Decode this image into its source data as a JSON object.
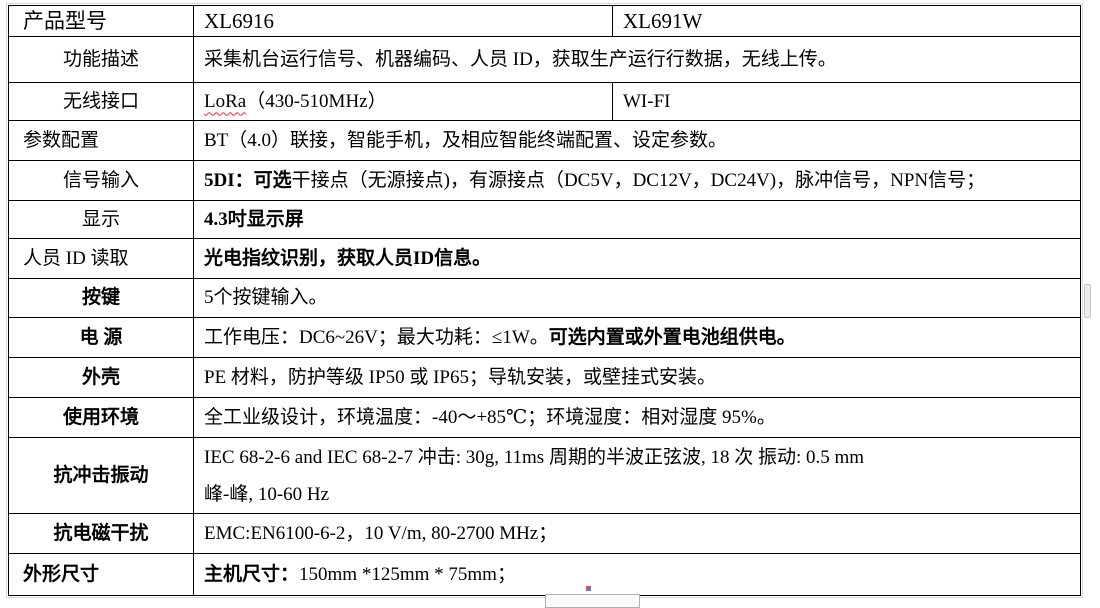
{
  "table": {
    "border_color": "#000000",
    "spellcheck_underline_color": "#ff2a2a",
    "rows": [
      {
        "label": "产品型号",
        "label_align": "left",
        "label_bold": false,
        "label_large": true,
        "cells": [
          {
            "large": true,
            "segments": [
              {
                "text": "XL6916"
              }
            ]
          },
          {
            "large": true,
            "segments": [
              {
                "text": "XL691W"
              }
            ]
          }
        ]
      },
      {
        "label": "功能描述",
        "label_align": "center",
        "label_bold": false,
        "cells": [
          {
            "span": 2,
            "segments": [
              {
                "text": "采集机台运行信号、机器编码、人员 ID，获取生产运行行数据，无线上传。"
              }
            ]
          }
        ]
      },
      {
        "label": "无线接口",
        "label_align": "center",
        "label_bold": false,
        "cells": [
          {
            "segments": [
              {
                "text": "LoRa",
                "wavy": true
              },
              {
                "text": "（430-510MHz）"
              }
            ]
          },
          {
            "segments": [
              {
                "text": "WI-FI"
              }
            ]
          }
        ]
      },
      {
        "label": "参数配置",
        "label_align": "left",
        "label_bold": false,
        "cells": [
          {
            "span": 2,
            "segments": [
              {
                "text": "BT（4.0）联接，智能手机，及相应智能终端配置、设定参数。"
              }
            ]
          }
        ]
      },
      {
        "label": "信号输入",
        "label_align": "center",
        "label_bold": false,
        "cells": [
          {
            "span": 2,
            "segments": [
              {
                "text": "5DI：可选",
                "bold": true
              },
              {
                "text": "干接点（无源接点)，有源接点（DC5V，DC12V，DC24V)，脉冲信号，NPN信号；"
              }
            ]
          }
        ]
      },
      {
        "label": "显示",
        "label_align": "center",
        "label_bold": false,
        "cells": [
          {
            "span": 2,
            "segments": [
              {
                "text": "4.3吋显示屏",
                "bold": true
              }
            ]
          }
        ]
      },
      {
        "label": "人员 ID 读取",
        "label_align": "left",
        "label_bold": false,
        "cells": [
          {
            "span": 2,
            "segments": [
              {
                "text": "光电指纹识别，获取人员ID信息。",
                "bold": true
              }
            ]
          }
        ]
      },
      {
        "label": "按键",
        "label_align": "center",
        "label_bold": true,
        "cells": [
          {
            "span": 2,
            "segments": [
              {
                "text": "5个按键输入。"
              }
            ]
          }
        ]
      },
      {
        "label": "电 源",
        "label_align": "center",
        "label_bold": true,
        "cells": [
          {
            "span": 2,
            "segments": [
              {
                "text": "工作电压：DC6~26V；最大功耗：≤1W。"
              },
              {
                "text": "可选内置或外置电池组供电。",
                "bold": true
              }
            ]
          }
        ]
      },
      {
        "label": "外壳",
        "label_align": "center",
        "label_bold": true,
        "cells": [
          {
            "span": 2,
            "segments": [
              {
                "text": "PE 材料，防护等级 IP50 或 IP65；导轨安装，或壁挂式安装。"
              }
            ]
          }
        ]
      },
      {
        "label": "使用环境",
        "label_align": "center",
        "label_bold": true,
        "cells": [
          {
            "span": 2,
            "segments": [
              {
                "text": "全工业级设计，环境温度：-40～+85℃；环境湿度：相对湿度 95%。"
              }
            ]
          }
        ]
      },
      {
        "label": "抗冲击振动",
        "label_align": "center",
        "label_bold": true,
        "cells": [
          {
            "span": 2,
            "segments": [
              {
                "text": "IEC 68-2-6 and IEC 68-2-7 冲击: 30g, 11ms 周期的半波正弦波, 18 次 振动: 0.5 mm\n峰-峰, 10-60 Hz"
              }
            ]
          }
        ]
      },
      {
        "label": "抗电磁干扰",
        "label_align": "center",
        "label_bold": true,
        "cells": [
          {
            "span": 2,
            "segments": [
              {
                "text": "EMC:EN6100-6-2，10 V/m, 80-2700 MHz；"
              }
            ]
          }
        ]
      },
      {
        "label": "外形尺寸",
        "label_align": "left",
        "label_bold": true,
        "cells": [
          {
            "span": 2,
            "segments": [
              {
                "text": "主机尺寸：",
                "bold": true
              },
              {
                "text": "150mm *125mm * 75mm；"
              }
            ]
          }
        ]
      }
    ]
  }
}
